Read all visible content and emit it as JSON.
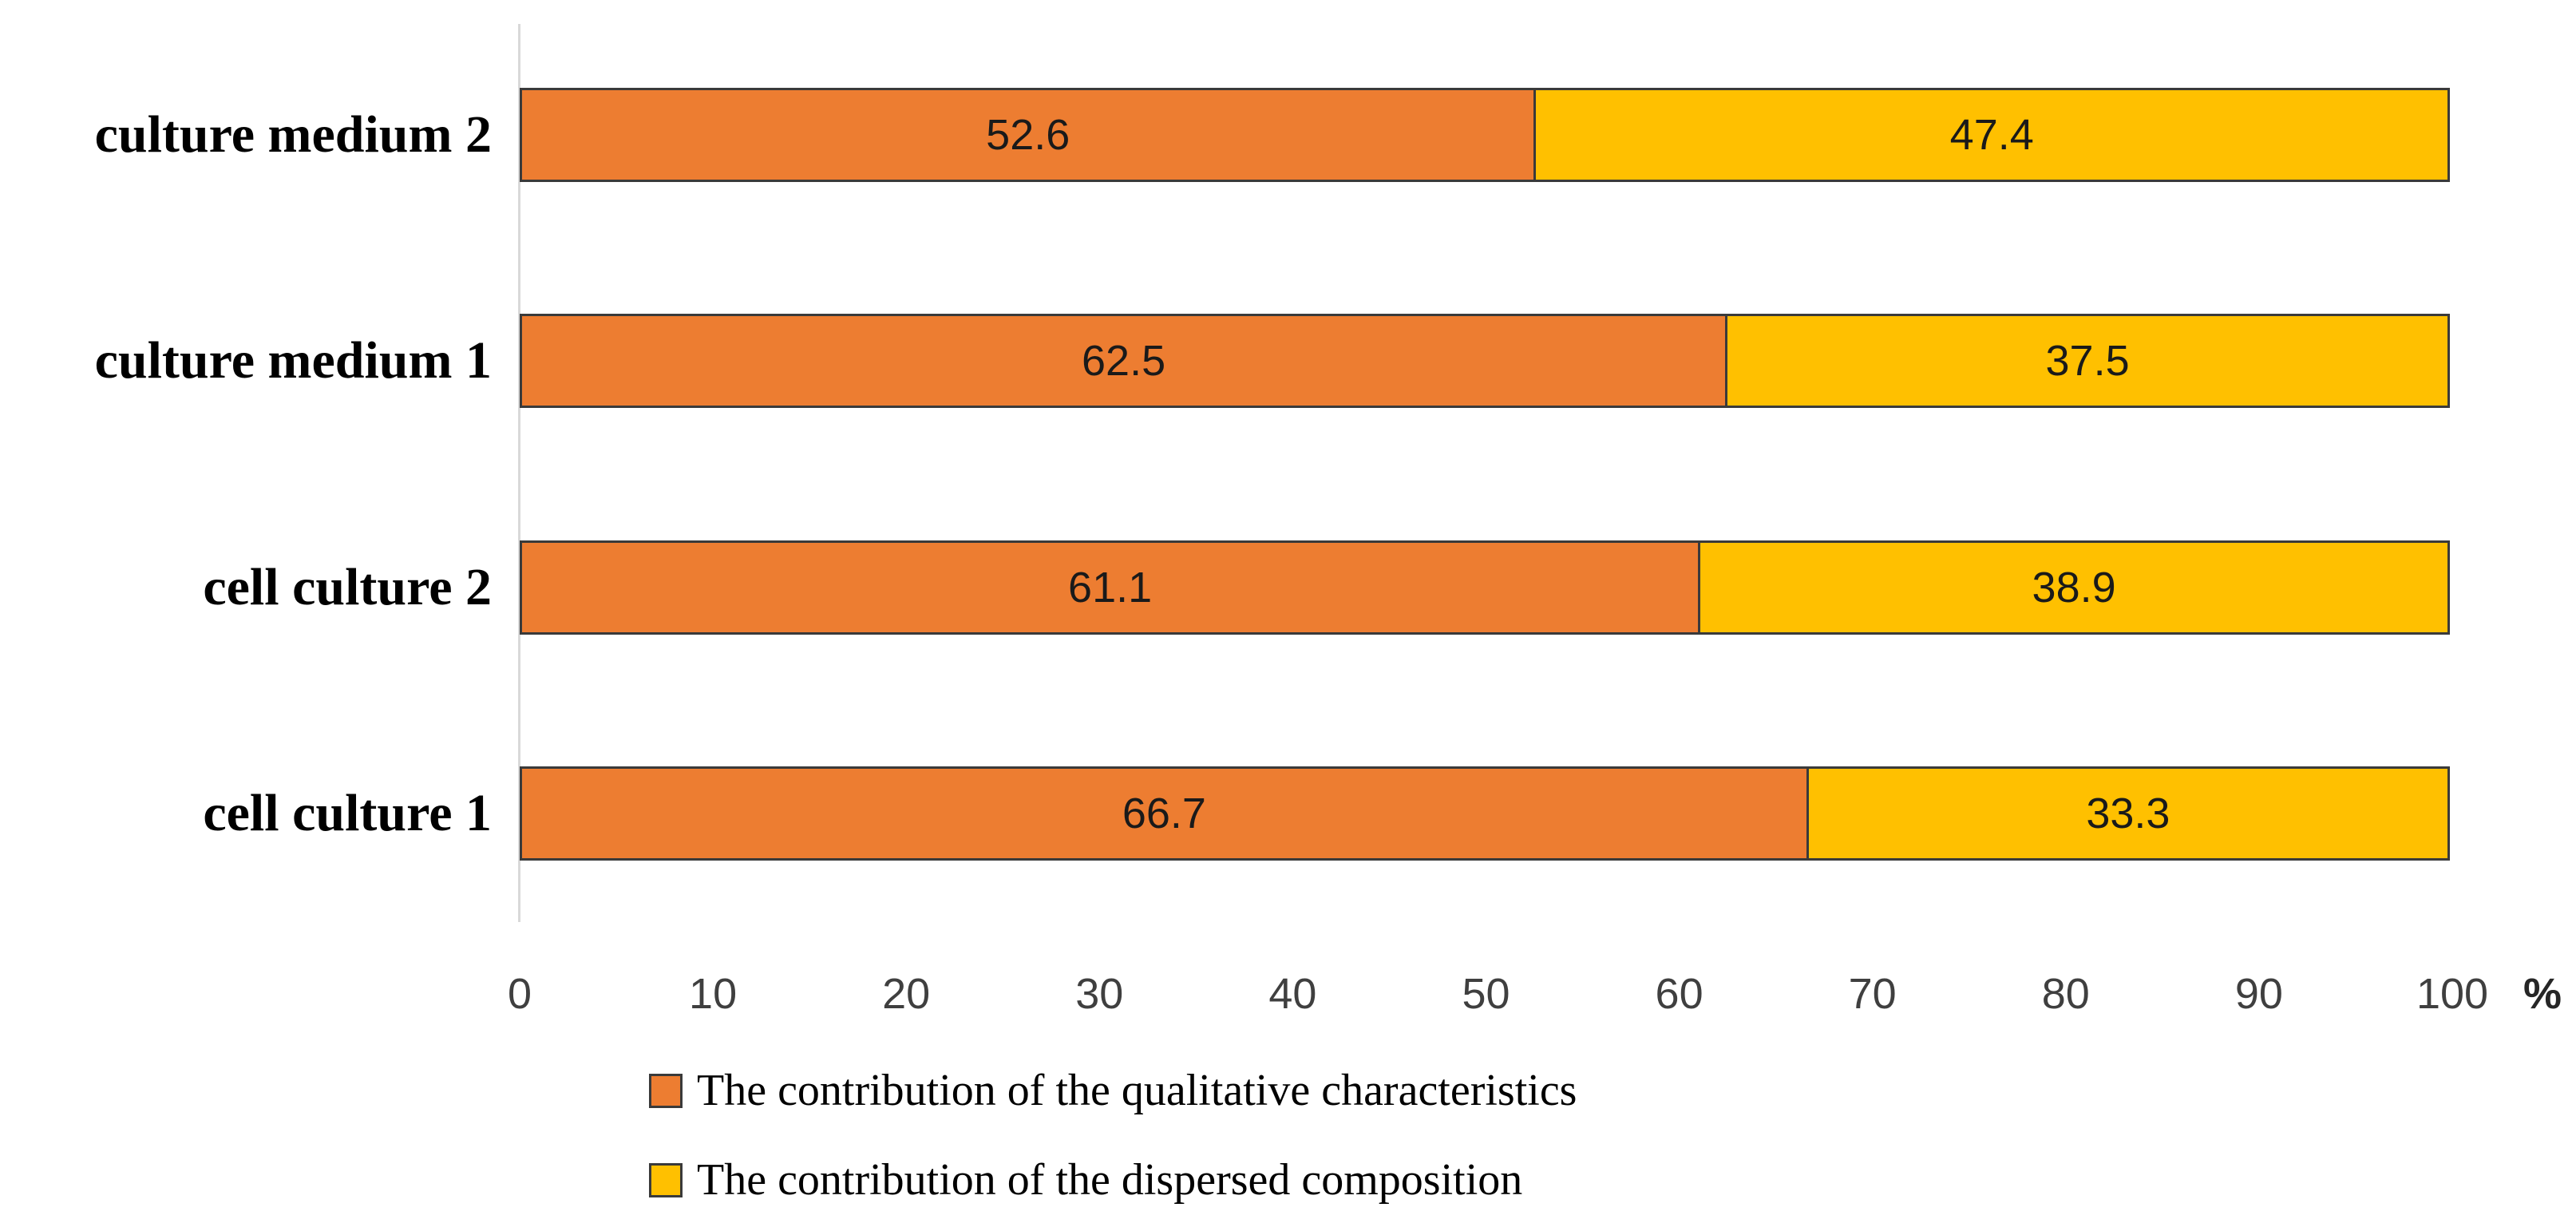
{
  "chart_data": {
    "type": "bar",
    "orientation": "horizontal",
    "stacked": true,
    "categories": [
      "culture medium 2",
      "culture medium 1",
      "cell culture 2",
      "cell culture 1"
    ],
    "series": [
      {
        "name": "The contribution of the qualitative characteristics",
        "color": "#ED7D31",
        "values": [
          52.6,
          62.5,
          61.1,
          66.7
        ]
      },
      {
        "name": "The contribution of the dispersed composition",
        "color": "#FFC000",
        "values": [
          47.4,
          37.5,
          38.9,
          33.3
        ]
      }
    ],
    "value_labels_shown": true,
    "xlabel": "%",
    "xlim": [
      0,
      100
    ],
    "xticks": [
      "0",
      "10",
      "20",
      "30",
      "40",
      "50",
      "60",
      "70",
      "80",
      "90",
      "100"
    ],
    "grid": false,
    "legend_position": "bottom-left",
    "axis_line_color": "#d9d9d9",
    "bar_border_color": "#3a3a3a",
    "background_color": "#ffffff"
  }
}
